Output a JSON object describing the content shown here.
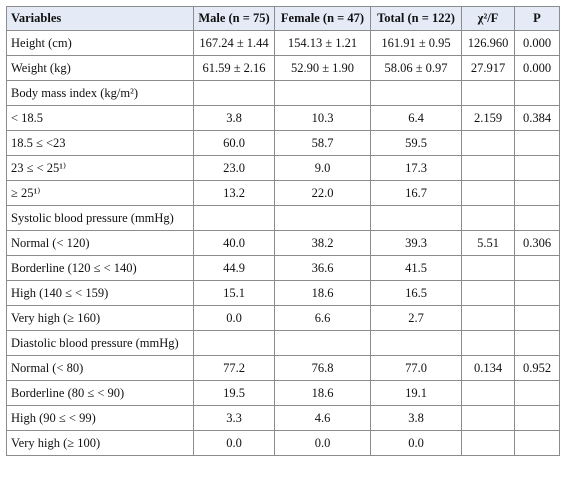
{
  "table": {
    "headers": [
      "Variables",
      "Male (n = 75)",
      "Female (n = 47)",
      "Total (n = 122)",
      "χ²/F",
      "P"
    ],
    "rows": [
      [
        "Height (cm)",
        "167.24 ± 1.44",
        "154.13 ± 1.21",
        "161.91 ± 0.95",
        "126.960",
        "0.000"
      ],
      [
        "Weight (kg)",
        "61.59 ± 2.16",
        "52.90 ± 1.90",
        "58.06 ± 0.97",
        "27.917",
        "0.000"
      ],
      [
        "Body mass index (kg/m²)",
        "",
        "",
        "",
        "",
        ""
      ],
      [
        "< 18.5",
        "3.8",
        "10.3",
        "6.4",
        "2.159",
        "0.384"
      ],
      [
        "18.5 ≤ <23",
        "60.0",
        "58.7",
        "59.5",
        "",
        ""
      ],
      [
        "23 ≤ < 25¹⁾",
        "23.0",
        "9.0",
        "17.3",
        "",
        ""
      ],
      [
        "≥ 25¹⁾",
        "13.2",
        "22.0",
        "16.7",
        "",
        ""
      ],
      [
        "Systolic blood pressure (mmHg)",
        "",
        "",
        "",
        "",
        ""
      ],
      [
        "Normal (< 120)",
        "40.0",
        "38.2",
        "39.3",
        "5.51",
        "0.306"
      ],
      [
        "Borderline (120 ≤ < 140)",
        "44.9",
        "36.6",
        "41.5",
        "",
        ""
      ],
      [
        "High (140 ≤ < 159)",
        "15.1",
        "18.6",
        "16.5",
        "",
        ""
      ],
      [
        "Very high (≥ 160)",
        "0.0",
        "6.6",
        "2.7",
        "",
        ""
      ],
      [
        "Diastolic blood pressure (mmHg)",
        "",
        "",
        "",
        "",
        ""
      ],
      [
        "Normal (< 80)",
        "77.2",
        "76.8",
        "77.0",
        "0.134",
        "0.952"
      ],
      [
        "Borderline (80 ≤ < 90)",
        "19.5",
        "18.6",
        "19.1",
        "",
        ""
      ],
      [
        "High (90 ≤ < 99)",
        "3.3",
        "4.6",
        "3.8",
        "",
        ""
      ],
      [
        "Very high (≥ 100)",
        "0.0",
        "0.0",
        "0.0",
        "",
        ""
      ]
    ]
  }
}
